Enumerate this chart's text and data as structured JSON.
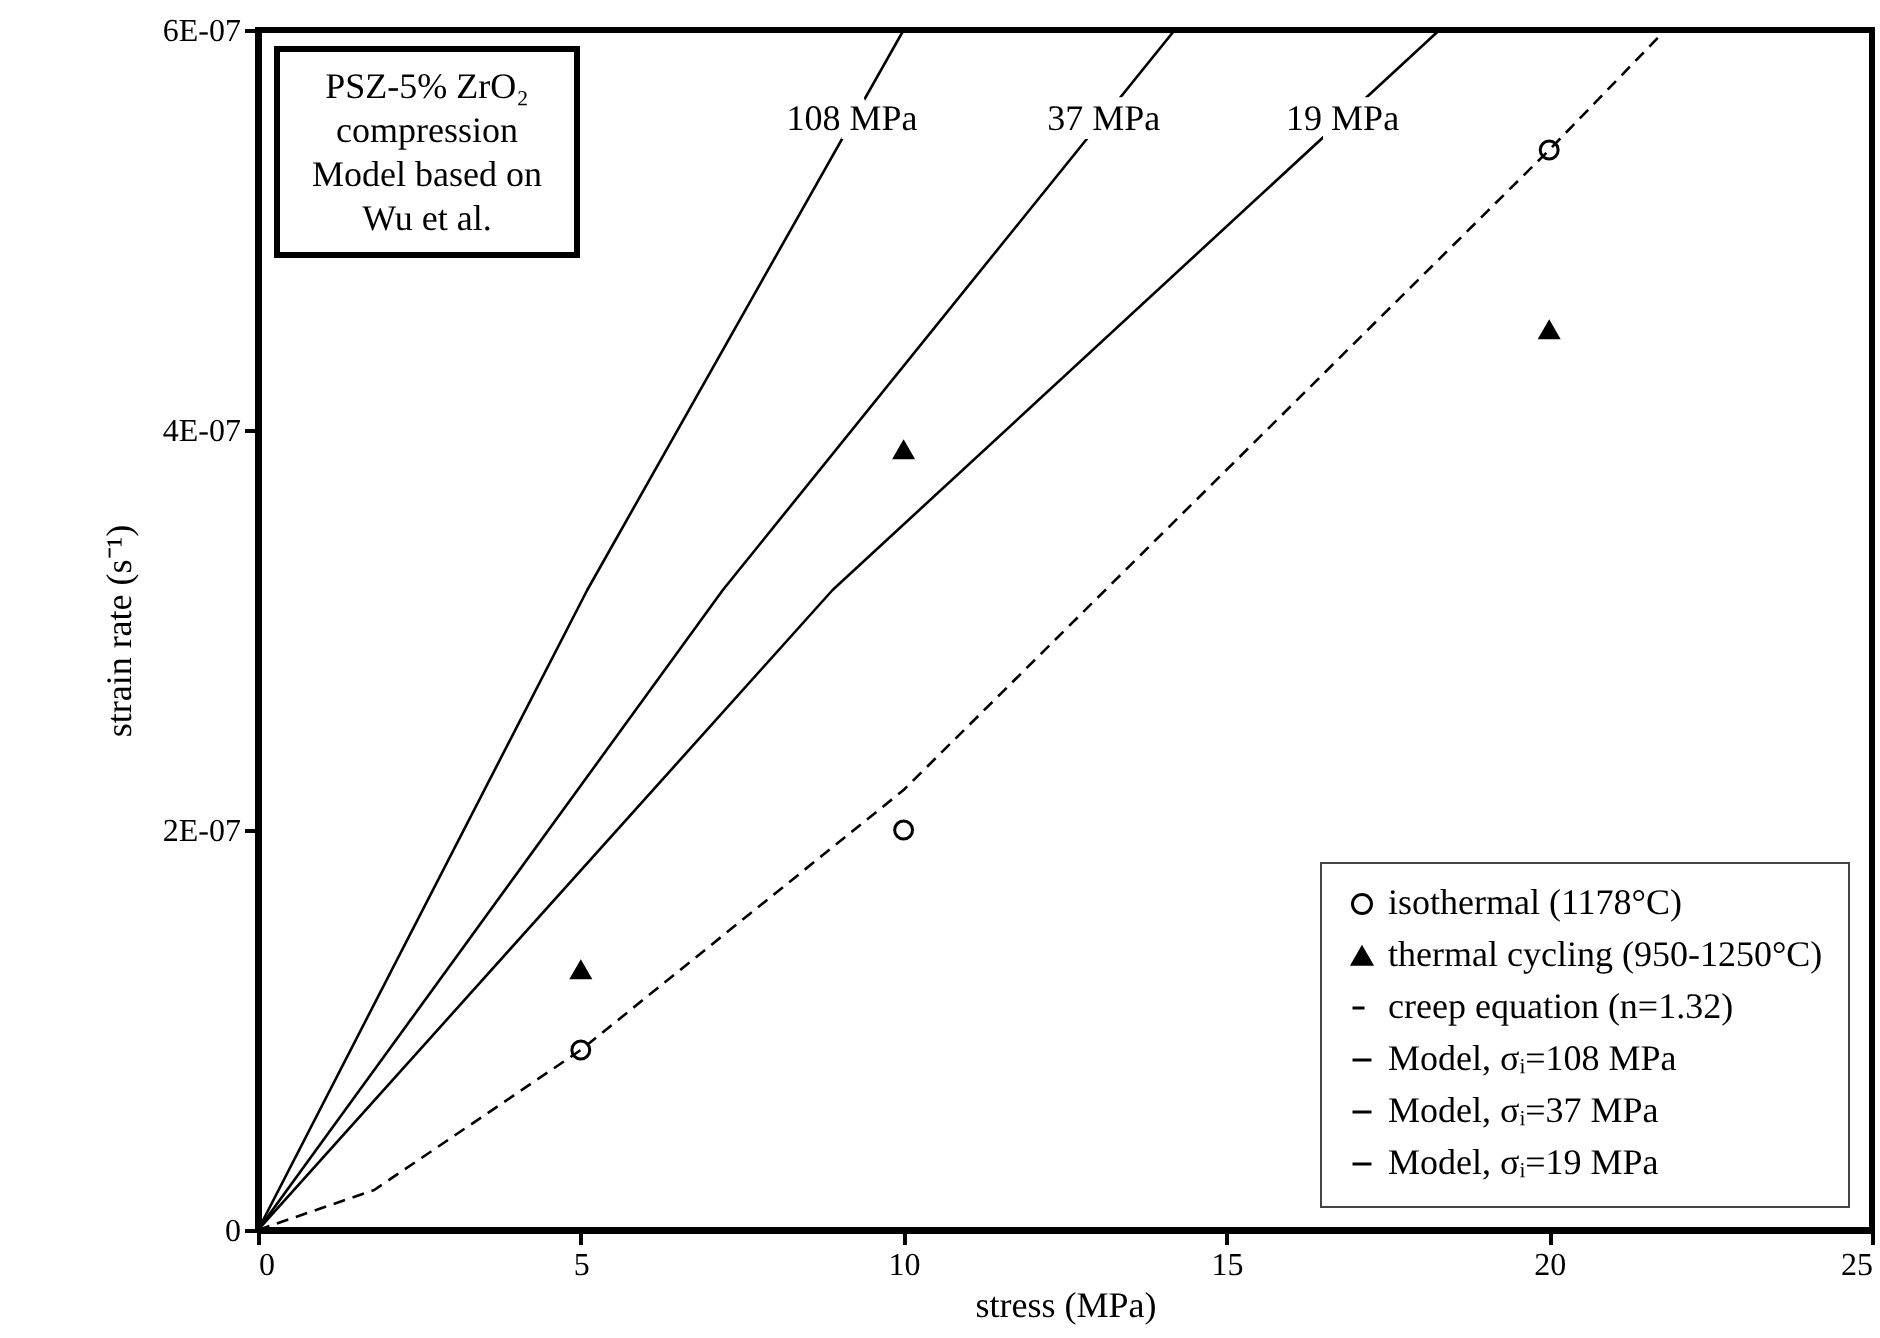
{
  "chart_data": {
    "type": "line",
    "xlabel": "stress (MPa)",
    "ylabel": "strain rate (s⁻¹)",
    "xlim": [
      0,
      25
    ],
    "xticks": [
      0,
      5,
      10,
      15,
      20,
      25
    ],
    "ylim": [
      0,
      6e-07
    ],
    "yticks": [
      0,
      {
        "value": 2e-07,
        "label": "2E-07"
      },
      {
        "value": 4e-07,
        "label": "4E-07"
      },
      {
        "value": 6e-07,
        "label": "6E-07"
      }
    ],
    "grid": false,
    "legend": "bottom right",
    "series": [
      {
        "name": "isothermal (1178°C)",
        "type": "scatter",
        "marker": "circle",
        "color": "#000000",
        "x": [
          5,
          10,
          20
        ],
        "values": [
          9e-08,
          2e-07,
          5.4e-07
        ]
      },
      {
        "name": "thermal cycling (950-1250°C)",
        "type": "scatter",
        "marker": "triangle",
        "color": "#000000",
        "x": [
          5,
          10,
          20
        ],
        "values": [
          1.3e-07,
          3.9e-07,
          4.5e-07
        ]
      },
      {
        "name": "creep equation (n=1.32)",
        "type": "line",
        "line_style": "dashed",
        "color": "#000000",
        "x": [
          0,
          1.8,
          5,
          10,
          15,
          20,
          21.8
        ],
        "values": [
          0,
          2e-08,
          9e-08,
          2.2e-07,
          3.8e-07,
          5.4e-07,
          6e-07
        ]
      },
      {
        "name": "Model, σᵢ=108 MPa",
        "type": "line",
        "line_style": "solid",
        "color": "#000000",
        "x": [
          0,
          5.1,
          10.0
        ],
        "values": [
          0,
          3.2e-07,
          6e-07
        ]
      },
      {
        "name": "Model, σᵢ=37 MPa",
        "type": "line",
        "line_style": "solid",
        "color": "#000000",
        "x": [
          0,
          7.2,
          14.2
        ],
        "values": [
          0,
          3.2e-07,
          6e-07
        ]
      },
      {
        "name": "Model, σᵢ=19 MPa",
        "type": "line",
        "line_style": "solid",
        "color": "#000000",
        "x": [
          0,
          8.9,
          18.3
        ],
        "values": [
          0,
          3.2e-07,
          6e-07
        ]
      }
    ],
    "annotations": [
      {
        "text": "108  MPa",
        "x": 9.2,
        "y": 5.55e-07
      },
      {
        "text": "37  MPa",
        "x": 13.1,
        "y": 5.55e-07
      },
      {
        "text": "19 MPa",
        "x": 16.8,
        "y": 5.55e-07
      },
      "PSZ-5% ZrO₂",
      "compression",
      "Model based on",
      "Wu et al."
    ]
  }
}
